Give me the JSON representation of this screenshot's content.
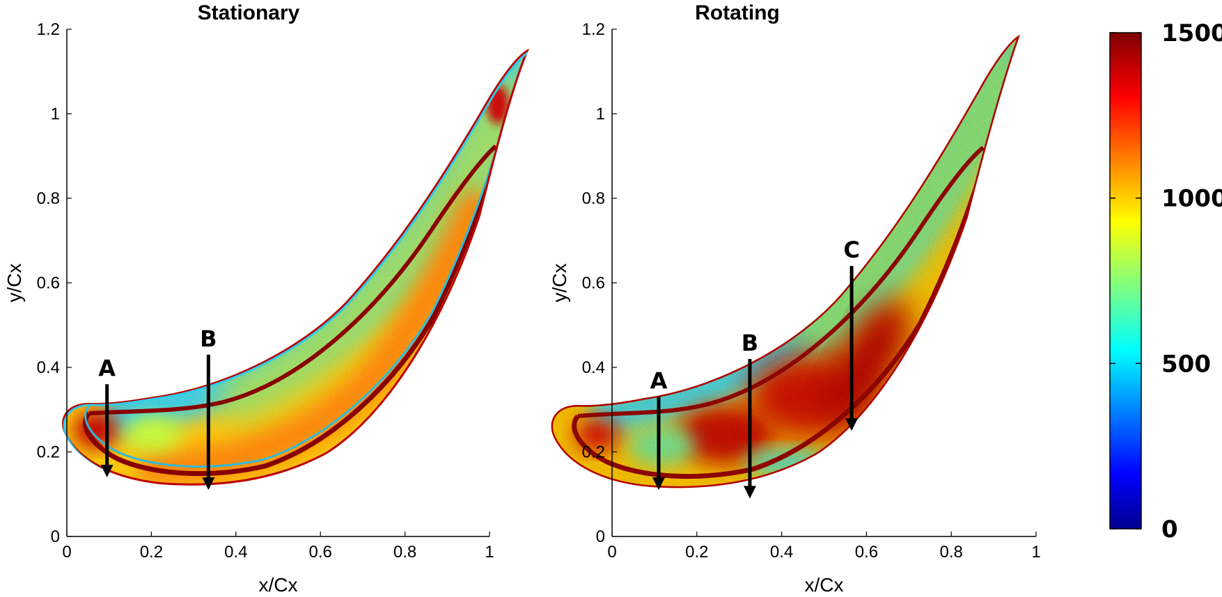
{
  "chart_data": [
    {
      "type": "heatmap",
      "title": "Stationary",
      "xlabel": "x/Cx",
      "ylabel": "y/Cx",
      "xlim": [
        0,
        1
      ],
      "ylim": [
        0,
        1.2
      ],
      "xticks": [
        "0",
        "0.2",
        "0.4",
        "0.6",
        "0.8",
        "1"
      ],
      "yticks": [
        "0",
        "0.2",
        "0.4",
        "0.6",
        "0.8",
        "1",
        "1.2"
      ],
      "annotations": [
        {
          "label": "A",
          "x": 0.095,
          "tail_y": 0.36,
          "head_y": 0.14
        },
        {
          "label": "B",
          "x": 0.335,
          "tail_y": 0.43,
          "head_y": 0.11
        }
      ]
    },
    {
      "type": "heatmap",
      "title": "Rotating",
      "xlabel": "x/Cx",
      "ylabel": "y/Cx",
      "xlim": [
        0,
        1
      ],
      "ylim": [
        0,
        1.2
      ],
      "xticks": [
        "0",
        "0.2",
        "0.4",
        "0.6",
        "0.8",
        "1"
      ],
      "yticks": [
        "0",
        "0.2",
        "0.4",
        "0.6",
        "0.8",
        "1",
        "1.2"
      ],
      "annotations": [
        {
          "label": "A",
          "x": 0.11,
          "tail_y": 0.33,
          "head_y": 0.11
        },
        {
          "label": "B",
          "x": 0.325,
          "tail_y": 0.42,
          "head_y": 0.09
        },
        {
          "label": "C",
          "x": 0.565,
          "tail_y": 0.64,
          "head_y": 0.25
        }
      ]
    }
  ],
  "colorbar": {
    "min": 0,
    "max": 1500,
    "ticks": [
      "0",
      "500",
      "1000",
      "1500"
    ],
    "tick_values": [
      0,
      500,
      1000,
      1500
    ],
    "colormap": "jet"
  }
}
